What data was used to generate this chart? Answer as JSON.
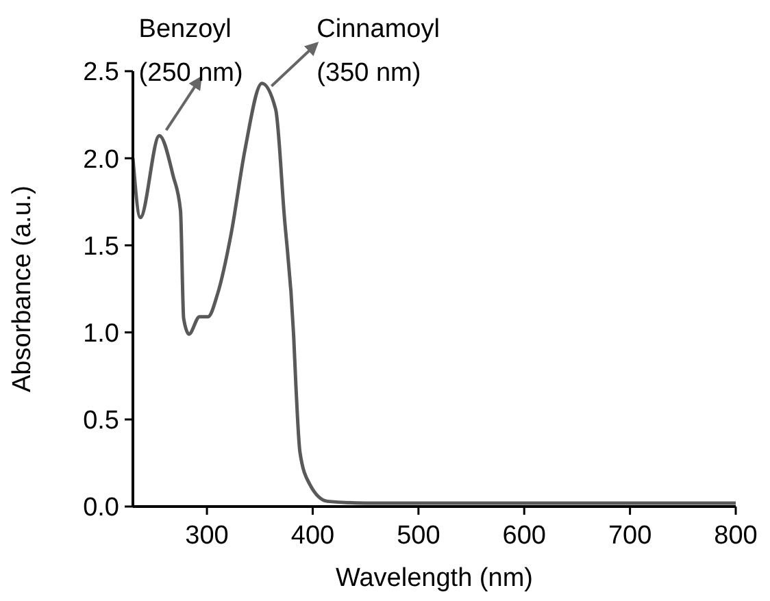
{
  "chart_data": {
    "type": "line",
    "xlabel": "Wavelength (nm)",
    "ylabel": "Absorbance (a.u.)",
    "x": [
      230,
      237,
      255,
      268,
      275,
      278,
      283,
      293,
      301,
      310,
      323,
      336,
      352,
      365,
      373,
      382,
      384,
      388,
      397,
      414,
      450,
      600,
      800
    ],
    "series": [
      {
        "color": "#595959",
        "values": [
          2.0,
          1.66,
          2.13,
          1.9,
          1.7,
          1.08,
          0.99,
          1.09,
          1.09,
          1.22,
          1.57,
          2.05,
          2.43,
          2.28,
          1.68,
          0.98,
          0.71,
          0.31,
          0.13,
          0.03,
          0.02,
          0.02,
          0.02
        ]
      }
    ],
    "xlim": [
      230,
      800
    ],
    "xticks": [
      300,
      400,
      500,
      600,
      700,
      800
    ],
    "ylim": [
      0,
      2.5
    ],
    "yticks": [
      {
        "value": 0,
        "label": "0.0"
      },
      {
        "value": 0.5,
        "label": "0.5"
      },
      {
        "value": 1,
        "label": "1.0"
      },
      {
        "value": 1.5,
        "label": "1.5"
      },
      {
        "value": 2,
        "label": "2.0"
      },
      {
        "value": 2.5,
        "label": "2.5"
      }
    ],
    "grid": false,
    "marker": "none",
    "line_style": "solid",
    "annotations": [
      {
        "text": "Benzoyl\n(250 nm)",
        "x": 255,
        "y": 2.13
      },
      {
        "text": "Cinnamoyl\n(350 nm)",
        "x": 352,
        "y": 2.43
      }
    ]
  }
}
